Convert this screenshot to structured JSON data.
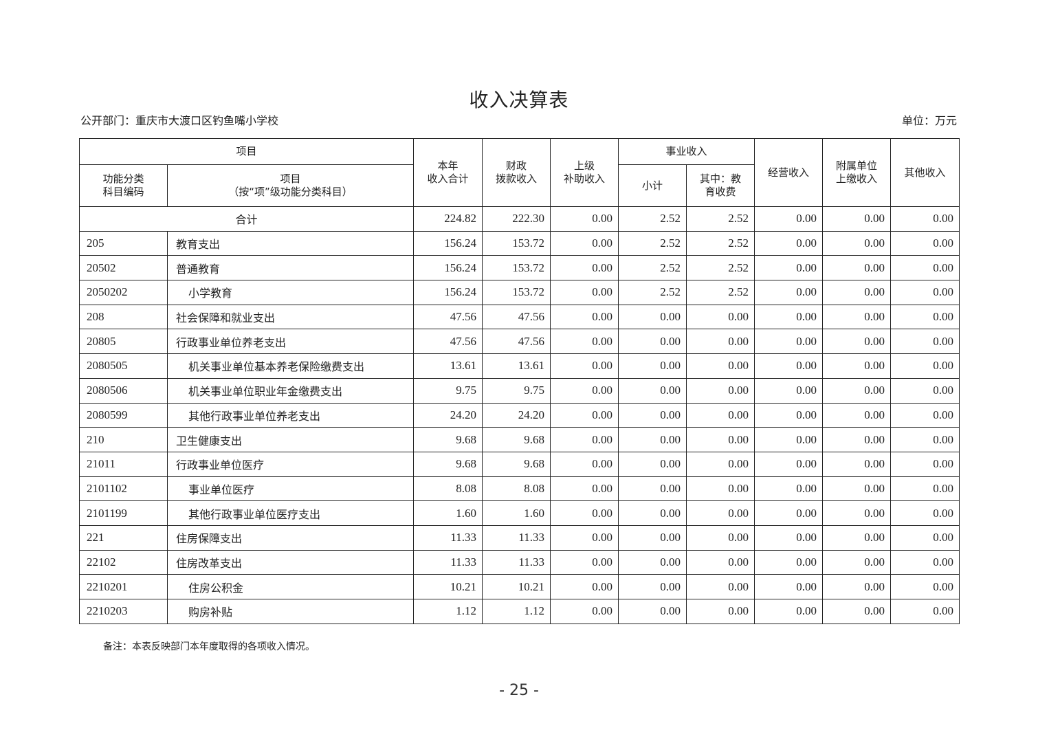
{
  "title": "收入决算表",
  "department": "公开部门：重庆市大渡口区钓鱼嘴小学校",
  "unit": "单位：万元",
  "headers": {
    "item_group": "项目",
    "code": "功能分类\n科目编码",
    "item": "项目\n（按“项”级功能分类科目）",
    "total": "本年\n收入合计",
    "fiscal": "财政\n拨款收入",
    "superior": "上级\n补助收入",
    "business_group": "事业收入",
    "subtotal": "小计",
    "edu_fee": "其中：教\n育收费",
    "operating": "经营收入",
    "affiliated": "附属单位\n上缴收入",
    "other": "其他收入"
  },
  "total_row": {
    "label": "合计",
    "values": [
      "224.82",
      "222.30",
      "0.00",
      "2.52",
      "2.52",
      "0.00",
      "0.00",
      "0.00"
    ]
  },
  "rows": [
    {
      "code": "205",
      "name": "教育支出",
      "level": 1,
      "values": [
        "156.24",
        "153.72",
        "0.00",
        "2.52",
        "2.52",
        "0.00",
        "0.00",
        "0.00"
      ]
    },
    {
      "code": "20502",
      "name": "普通教育",
      "level": 2,
      "values": [
        "156.24",
        "153.72",
        "0.00",
        "2.52",
        "2.52",
        "0.00",
        "0.00",
        "0.00"
      ]
    },
    {
      "code": "2050202",
      "name": "小学教育",
      "level": 3,
      "values": [
        "156.24",
        "153.72",
        "0.00",
        "2.52",
        "2.52",
        "0.00",
        "0.00",
        "0.00"
      ]
    },
    {
      "code": "208",
      "name": "社会保障和就业支出",
      "level": 1,
      "values": [
        "47.56",
        "47.56",
        "0.00",
        "0.00",
        "0.00",
        "0.00",
        "0.00",
        "0.00"
      ]
    },
    {
      "code": "20805",
      "name": "行政事业单位养老支出",
      "level": 2,
      "values": [
        "47.56",
        "47.56",
        "0.00",
        "0.00",
        "0.00",
        "0.00",
        "0.00",
        "0.00"
      ]
    },
    {
      "code": "2080505",
      "name": "机关事业单位基本养老保险缴费支出",
      "level": 3,
      "values": [
        "13.61",
        "13.61",
        "0.00",
        "0.00",
        "0.00",
        "0.00",
        "0.00",
        "0.00"
      ]
    },
    {
      "code": "2080506",
      "name": "机关事业单位职业年金缴费支出",
      "level": 3,
      "values": [
        "9.75",
        "9.75",
        "0.00",
        "0.00",
        "0.00",
        "0.00",
        "0.00",
        "0.00"
      ]
    },
    {
      "code": "2080599",
      "name": "其他行政事业单位养老支出",
      "level": 3,
      "values": [
        "24.20",
        "24.20",
        "0.00",
        "0.00",
        "0.00",
        "0.00",
        "0.00",
        "0.00"
      ]
    },
    {
      "code": "210",
      "name": "卫生健康支出",
      "level": 1,
      "values": [
        "9.68",
        "9.68",
        "0.00",
        "0.00",
        "0.00",
        "0.00",
        "0.00",
        "0.00"
      ]
    },
    {
      "code": "21011",
      "name": "行政事业单位医疗",
      "level": 2,
      "values": [
        "9.68",
        "9.68",
        "0.00",
        "0.00",
        "0.00",
        "0.00",
        "0.00",
        "0.00"
      ]
    },
    {
      "code": "2101102",
      "name": "事业单位医疗",
      "level": 3,
      "values": [
        "8.08",
        "8.08",
        "0.00",
        "0.00",
        "0.00",
        "0.00",
        "0.00",
        "0.00"
      ]
    },
    {
      "code": "2101199",
      "name": "其他行政事业单位医疗支出",
      "level": 3,
      "values": [
        "1.60",
        "1.60",
        "0.00",
        "0.00",
        "0.00",
        "0.00",
        "0.00",
        "0.00"
      ]
    },
    {
      "code": "221",
      "name": "住房保障支出",
      "level": 1,
      "values": [
        "11.33",
        "11.33",
        "0.00",
        "0.00",
        "0.00",
        "0.00",
        "0.00",
        "0.00"
      ]
    },
    {
      "code": "22102",
      "name": "住房改革支出",
      "level": 2,
      "values": [
        "11.33",
        "11.33",
        "0.00",
        "0.00",
        "0.00",
        "0.00",
        "0.00",
        "0.00"
      ]
    },
    {
      "code": "2210201",
      "name": "住房公积金",
      "level": 3,
      "values": [
        "10.21",
        "10.21",
        "0.00",
        "0.00",
        "0.00",
        "0.00",
        "0.00",
        "0.00"
      ]
    },
    {
      "code": "2210203",
      "name": "购房补贴",
      "level": 3,
      "values": [
        "1.12",
        "1.12",
        "0.00",
        "0.00",
        "0.00",
        "0.00",
        "0.00",
        "0.00"
      ]
    }
  ],
  "note": "备注：本表反映部门本年度取得的各项收入情况。",
  "page_number": "- 25 -"
}
